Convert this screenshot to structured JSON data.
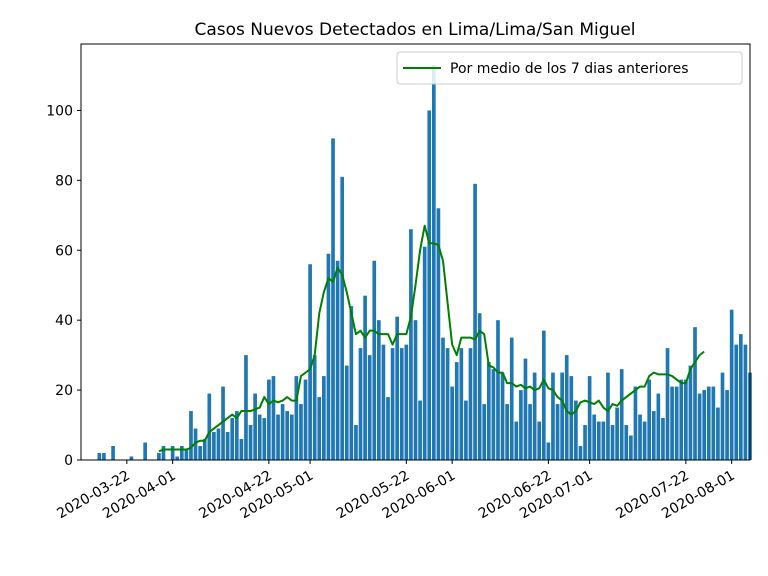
{
  "chart_data": {
    "type": "bar",
    "title": "Casos Nuevos Detectados en Lima/Lima/San Miguel",
    "xlabel": "",
    "ylabel": "",
    "ylim": [
      0,
      119
    ],
    "yticks": [
      0,
      20,
      40,
      60,
      80,
      100
    ],
    "xticks": [
      "2020-03-22",
      "2020-04-01",
      "2020-04-22",
      "2020-05-01",
      "2020-05-22",
      "2020-06-01",
      "2020-06-22",
      "2020-07-01",
      "2020-07-22",
      "2020-08-01"
    ],
    "grid": false,
    "legend": {
      "placement": "top-right",
      "entries": [
        "Por medio de los 7 dias anteriores"
      ]
    },
    "colors": {
      "bar": "#1f77b4",
      "line": "#008000"
    },
    "bar_series": {
      "start_date": "2020-03-16",
      "values": [
        2,
        2,
        0,
        4,
        0,
        0,
        0,
        1,
        0,
        0,
        5,
        0,
        0,
        2,
        4,
        0,
        4,
        1,
        4,
        3,
        14,
        9,
        4,
        6,
        19,
        8,
        9,
        21,
        8,
        12,
        14,
        6,
        30,
        10,
        19,
        13,
        12,
        23,
        24,
        13,
        16,
        14,
        13,
        24,
        16,
        23,
        56,
        30,
        18,
        24,
        59,
        92,
        57,
        81,
        27,
        44,
        10,
        32,
        47,
        30,
        57,
        40,
        33,
        18,
        32,
        41,
        32,
        33,
        66,
        40,
        17,
        61,
        100,
        113,
        72,
        35,
        32,
        21,
        28,
        32,
        17,
        32,
        79,
        42,
        16,
        28,
        26,
        40,
        25,
        16,
        35,
        11,
        20,
        29,
        16,
        25,
        11,
        37,
        5,
        25,
        16,
        25,
        30,
        24,
        17,
        4,
        10,
        24,
        13,
        11,
        11,
        25,
        10,
        15,
        26,
        10,
        7,
        21,
        13,
        11,
        23,
        14,
        19,
        12,
        32,
        21,
        21,
        23,
        23,
        27,
        38,
        19,
        20,
        21,
        21,
        15,
        25,
        20,
        43,
        33,
        36,
        33,
        25
      ]
    },
    "line_series": {
      "name": "Por medio de los 7 dias anteriores",
      "start_date": "2020-03-29",
      "values": [
        2.5,
        3,
        3,
        3,
        3,
        3,
        3,
        3.5,
        5,
        5.5,
        5.5,
        8,
        9,
        10,
        11,
        12,
        13,
        12,
        14,
        14,
        14,
        14.5,
        15,
        18,
        16,
        17,
        16.5,
        17,
        18,
        17,
        17,
        24,
        25,
        26,
        30,
        42,
        48,
        52,
        51,
        55,
        53,
        48,
        42,
        36,
        37,
        35,
        37,
        37,
        36,
        36,
        36,
        33,
        36,
        36,
        36,
        41,
        50,
        60,
        67,
        62,
        62,
        61.5,
        57,
        45,
        33,
        30,
        35,
        35,
        35,
        34.5,
        37,
        36,
        27,
        26.5,
        25,
        25,
        22,
        22,
        21,
        21.5,
        20.5,
        21,
        20,
        20.5,
        23,
        20.5,
        20,
        18,
        17,
        14,
        13,
        14,
        16.5,
        17,
        16.5,
        16,
        17,
        15,
        14,
        16,
        15.5,
        17,
        18,
        19,
        20,
        21,
        21,
        24,
        25,
        24.5,
        24.5,
        24.5,
        24,
        23,
        22,
        22,
        26,
        28,
        30,
        31
      ]
    }
  }
}
